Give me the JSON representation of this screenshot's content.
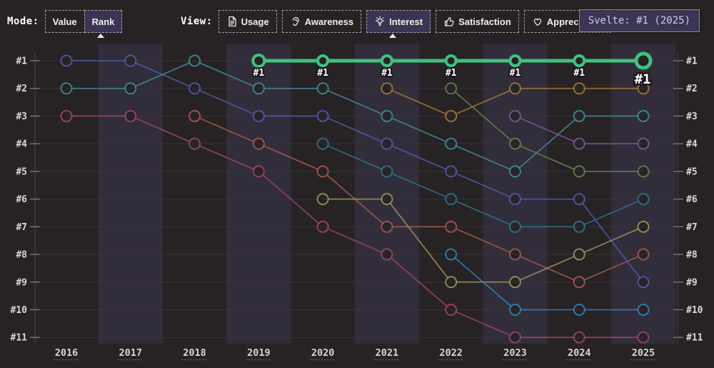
{
  "header": {
    "mode": {
      "label": "Mode:",
      "options": [
        {
          "label": "Value",
          "selected": false
        },
        {
          "label": "Rank",
          "selected": true
        }
      ]
    },
    "view": {
      "label": "View:",
      "tabs": [
        {
          "label": "Usage",
          "icon": "document-icon",
          "selected": false
        },
        {
          "label": "Awareness",
          "icon": "ear-icon",
          "selected": false
        },
        {
          "label": "Interest",
          "icon": "lightbulb-icon",
          "selected": true
        },
        {
          "label": "Satisfaction",
          "icon": "thumbs-up-icon",
          "selected": false
        },
        {
          "label": "Appreciation",
          "icon": "heart-icon",
          "selected": false
        }
      ]
    },
    "tooltip": {
      "text": "Svelte: #1 (2025)"
    }
  },
  "chart_data": {
    "type": "line",
    "subtype": "rank-bump-chart",
    "x_categories": [
      2016,
      2017,
      2018,
      2019,
      2020,
      2021,
      2022,
      2023,
      2024,
      2025
    ],
    "y_axis": {
      "labels": [
        "#1",
        "#2",
        "#3",
        "#4",
        "#5",
        "#6",
        "#7",
        "#8",
        "#9",
        "#10",
        "#11"
      ],
      "ranks": [
        1,
        2,
        3,
        4,
        5,
        6,
        7,
        8,
        9,
        10,
        11
      ],
      "direction": "rank 1 at top",
      "shown_on": "both sides"
    },
    "grid": true,
    "band_years": [
      2017,
      2019,
      2021,
      2023,
      2025
    ],
    "highlighted_series": "svelte-green",
    "highlight_point_label": "#1",
    "colors": {
      "background": "#272224",
      "band": "#322d3a",
      "gridline": "#3a3538",
      "axis": "#4a4548",
      "tick": "#7a7578",
      "tick_text": "#dedad4",
      "highlight": "#3ec27f",
      "point_label_fill": "#ffffff",
      "point_label_stroke": "#1a1518"
    },
    "series": [
      {
        "name": "indigo",
        "color": "#4f5ba9",
        "highlight": false,
        "points": [
          [
            2016,
            1
          ],
          [
            2017,
            1
          ],
          [
            2018,
            2
          ],
          [
            2019,
            3
          ],
          [
            2020,
            3
          ],
          [
            2021,
            4
          ],
          [
            2022,
            5
          ],
          [
            2023,
            6
          ],
          [
            2024,
            6
          ],
          [
            2025,
            9
          ]
        ]
      },
      {
        "name": "teal",
        "color": "#3f8b98",
        "highlight": false,
        "points": [
          [
            2016,
            2
          ],
          [
            2017,
            2
          ],
          [
            2018,
            1
          ],
          [
            2019,
            2
          ],
          [
            2020,
            2
          ],
          [
            2021,
            3
          ],
          [
            2022,
            4
          ],
          [
            2023,
            5
          ],
          [
            2024,
            3
          ],
          [
            2025,
            3
          ]
        ]
      },
      {
        "name": "pink-maroon",
        "color": "#96476b",
        "highlight": false,
        "points": [
          [
            2016,
            3
          ],
          [
            2017,
            3
          ],
          [
            2018,
            4
          ],
          [
            2019,
            5
          ],
          [
            2020,
            7
          ],
          [
            2021,
            8
          ],
          [
            2022,
            10
          ],
          [
            2023,
            11
          ],
          [
            2024,
            11
          ],
          [
            2025,
            11
          ]
        ]
      },
      {
        "name": "brick-red",
        "color": "#a05a4e",
        "highlight": false,
        "points": [
          [
            2018,
            3
          ],
          [
            2019,
            4
          ],
          [
            2020,
            5
          ],
          [
            2021,
            7
          ],
          [
            2022,
            7
          ],
          [
            2023,
            8
          ],
          [
            2024,
            9
          ],
          [
            2025,
            8
          ]
        ]
      },
      {
        "name": "dark-cyan",
        "color": "#2e7289",
        "highlight": false,
        "points": [
          [
            2020,
            4
          ],
          [
            2021,
            5
          ],
          [
            2022,
            6
          ],
          [
            2023,
            7
          ],
          [
            2024,
            7
          ],
          [
            2025,
            6
          ]
        ]
      },
      {
        "name": "olive",
        "color": "#95955c",
        "highlight": false,
        "points": [
          [
            2020,
            6
          ],
          [
            2021,
            6
          ],
          [
            2022,
            9
          ],
          [
            2023,
            9
          ],
          [
            2024,
            8
          ],
          [
            2025,
            7
          ]
        ]
      },
      {
        "name": "gold",
        "color": "#9d7a31",
        "highlight": false,
        "points": [
          [
            2021,
            2
          ],
          [
            2022,
            3
          ],
          [
            2023,
            2
          ],
          [
            2024,
            2
          ],
          [
            2025,
            2
          ]
        ]
      },
      {
        "name": "dark-green",
        "color": "#61814d",
        "highlight": false,
        "points": [
          [
            2022,
            2
          ],
          [
            2023,
            4
          ],
          [
            2024,
            5
          ],
          [
            2025,
            5
          ]
        ]
      },
      {
        "name": "steel-blue",
        "color": "#3182b1",
        "highlight": false,
        "points": [
          [
            2022,
            8
          ],
          [
            2023,
            10
          ],
          [
            2024,
            10
          ],
          [
            2025,
            10
          ]
        ]
      },
      {
        "name": "purple",
        "color": "#7a569a",
        "highlight": false,
        "points": [
          [
            2023,
            3
          ],
          [
            2024,
            4
          ],
          [
            2025,
            4
          ]
        ]
      },
      {
        "name": "svelte-green",
        "color": "#3ec27f",
        "highlight": true,
        "points": [
          [
            2019,
            1
          ],
          [
            2020,
            1
          ],
          [
            2021,
            1
          ],
          [
            2022,
            1
          ],
          [
            2023,
            1
          ],
          [
            2024,
            1
          ],
          [
            2025,
            1
          ]
        ]
      }
    ]
  }
}
